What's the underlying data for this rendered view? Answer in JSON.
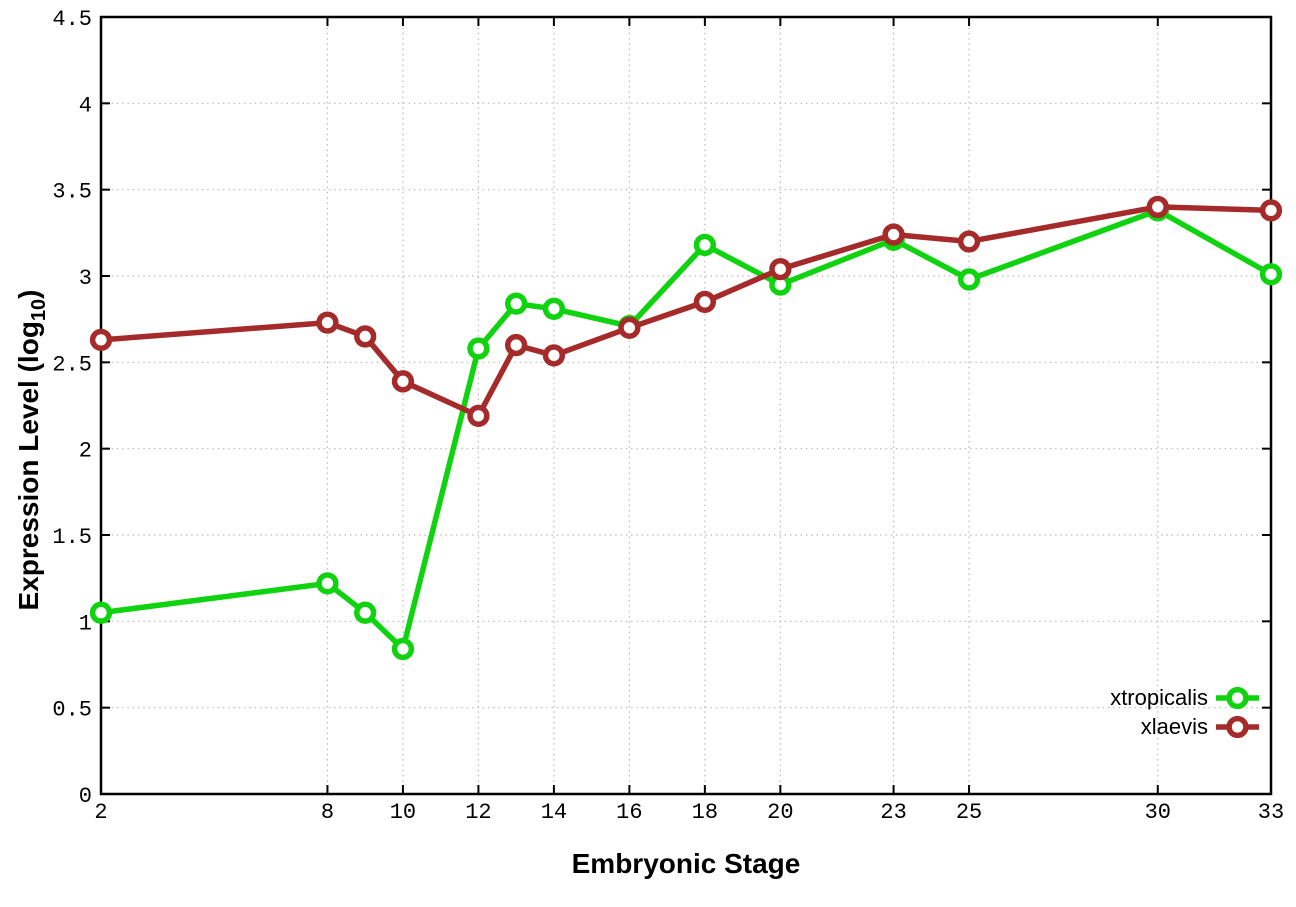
{
  "figure": {
    "background": "#ffffff",
    "border_color": "#000000",
    "grid_color": "#b9b9b9"
  },
  "chart_data": {
    "type": "line",
    "title": "",
    "xlabel": "Embryonic Stage",
    "ylabel": "Expression Level (log10)",
    "ylabel_parts": {
      "main": "Expression Level (log",
      "sub": "10",
      "close": ")"
    },
    "x": [
      2,
      8,
      9,
      10,
      12,
      13,
      14,
      16,
      18,
      20,
      23,
      25,
      30,
      33
    ],
    "series": [
      {
        "name": "xtropicalis",
        "color": "#0ed30e",
        "marker": "open-circle",
        "values": [
          1.05,
          1.22,
          1.05,
          0.84,
          2.58,
          2.84,
          2.81,
          2.71,
          3.18,
          2.95,
          3.21,
          2.98,
          3.38,
          3.01
        ]
      },
      {
        "name": "xlaevis",
        "color": "#a52a2a",
        "marker": "open-circle",
        "values": [
          2.63,
          2.73,
          2.65,
          2.39,
          2.19,
          2.6,
          2.54,
          2.7,
          2.85,
          3.04,
          3.24,
          3.2,
          3.4,
          3.38
        ]
      }
    ],
    "xticks": [
      2,
      8,
      10,
      12,
      14,
      16,
      18,
      20,
      23,
      25,
      30,
      33
    ],
    "yticks": [
      0,
      0.5,
      1,
      1.5,
      2,
      2.5,
      3,
      3.5,
      4,
      4.5
    ],
    "xlim": [
      2,
      33
    ],
    "ylim": [
      0,
      4.5
    ],
    "grid": true,
    "legend_position": "bottom-right",
    "legend": [
      "xtropicalis",
      "xlaevis"
    ]
  }
}
